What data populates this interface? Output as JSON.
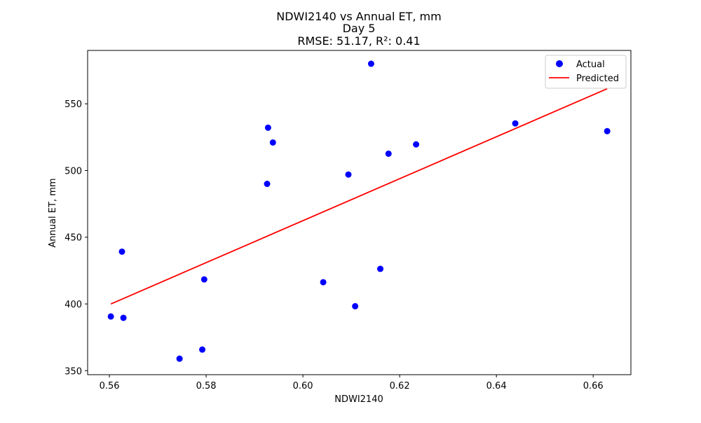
{
  "chart_data": {
    "type": "scatter",
    "title_lines": [
      "NDWI2140 vs Annual ET, mm",
      "Day 5",
      "RMSE: 51.17, R²: 0.41"
    ],
    "xlabel": "NDWI2140",
    "ylabel": "Annual ET, mm",
    "xlim": [
      0.5555,
      0.6678
    ],
    "ylim": [
      347,
      590
    ],
    "xticks": [
      0.56,
      0.58,
      0.6,
      0.62,
      0.64,
      0.66
    ],
    "xtick_labels": [
      "0.56",
      "0.58",
      "0.60",
      "0.62",
      "0.64",
      "0.66"
    ],
    "yticks": [
      350,
      400,
      450,
      500,
      550
    ],
    "ytick_labels": [
      "350",
      "400",
      "450",
      "500",
      "550"
    ],
    "grid": false,
    "legend_position": "top-right",
    "series": [
      {
        "name": "Actual",
        "kind": "points",
        "color": "#0000ff",
        "points": [
          {
            "x": 0.5603,
            "y": 390.6
          },
          {
            "x": 0.5626,
            "y": 439.2
          },
          {
            "x": 0.5629,
            "y": 389.6
          },
          {
            "x": 0.5745,
            "y": 359.0
          },
          {
            "x": 0.5792,
            "y": 365.8
          },
          {
            "x": 0.5796,
            "y": 418.4
          },
          {
            "x": 0.5926,
            "y": 490.0
          },
          {
            "x": 0.5928,
            "y": 532.1
          },
          {
            "x": 0.5938,
            "y": 521.0
          },
          {
            "x": 0.6042,
            "y": 416.3
          },
          {
            "x": 0.6094,
            "y": 497.0
          },
          {
            "x": 0.6108,
            "y": 398.3
          },
          {
            "x": 0.6141,
            "y": 580.0
          },
          {
            "x": 0.616,
            "y": 426.3
          },
          {
            "x": 0.6177,
            "y": 512.6
          },
          {
            "x": 0.6234,
            "y": 519.6
          },
          {
            "x": 0.6439,
            "y": 535.3
          },
          {
            "x": 0.6629,
            "y": 529.5
          }
        ]
      },
      {
        "name": "Predicted",
        "kind": "line",
        "color": "#ff0000",
        "points": [
          {
            "x": 0.5603,
            "y": 400.0
          },
          {
            "x": 0.6629,
            "y": 561.3
          }
        ]
      }
    ]
  }
}
